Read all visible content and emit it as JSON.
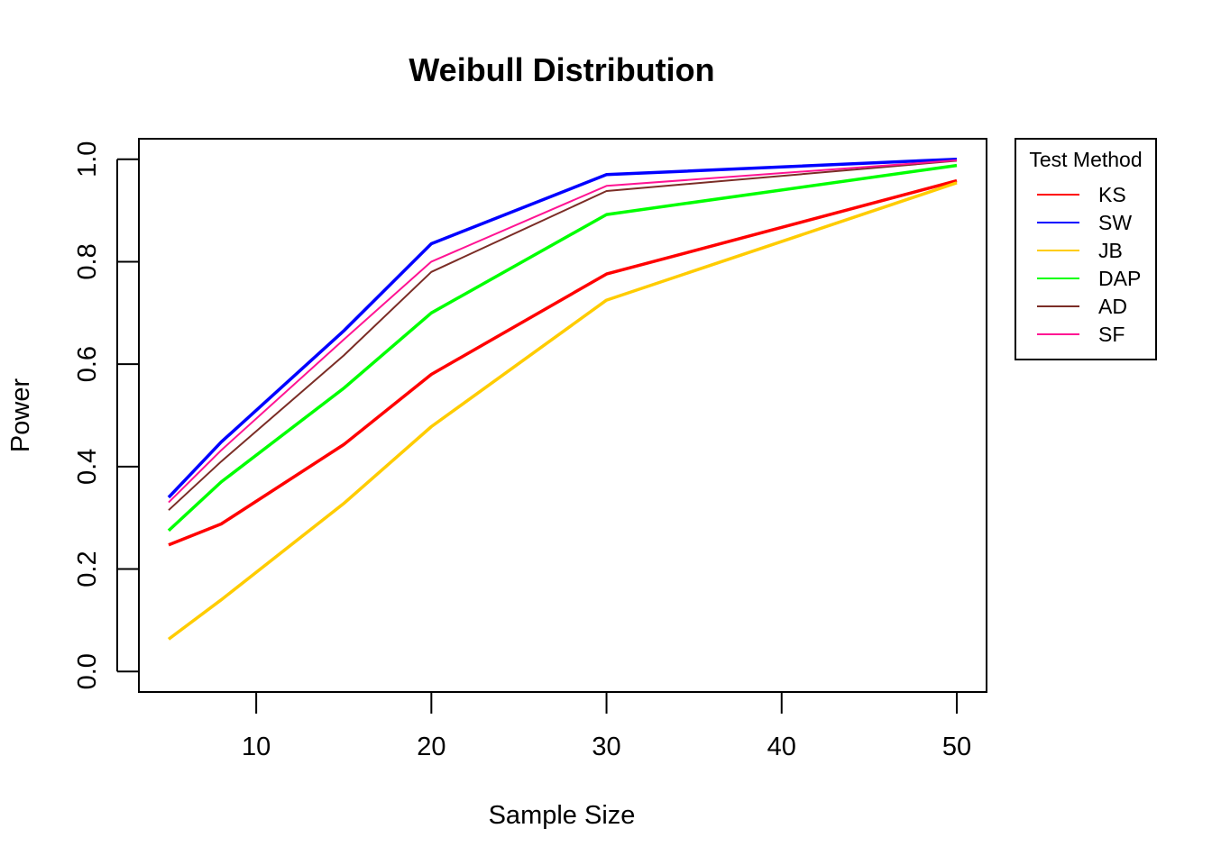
{
  "chart_data": {
    "type": "line",
    "title": "Weibull Distribution",
    "xlabel": "Sample Size",
    "ylabel": "Power",
    "x": [
      5,
      8,
      15,
      20,
      30,
      50
    ],
    "xticks": [
      10,
      20,
      30,
      40,
      50
    ],
    "yticks": [
      "0.0",
      "0.2",
      "0.4",
      "0.6",
      "0.8",
      "1.0"
    ],
    "xlim": [
      3.3,
      51.7
    ],
    "ylim": [
      -0.04,
      1.04
    ],
    "grid": false,
    "legend": {
      "title": "Test Method",
      "placement": "right-outside-top"
    },
    "series": [
      {
        "name": "KS",
        "color": "#FF0000",
        "width": 3.5,
        "values": [
          0.247,
          0.288,
          0.443,
          0.58,
          0.776,
          0.958
        ]
      },
      {
        "name": "SW",
        "color": "#0000FF",
        "width": 3.5,
        "values": [
          0.34,
          0.448,
          0.665,
          0.835,
          0.97,
          1.0
        ]
      },
      {
        "name": "JB",
        "color": "#FFCC00",
        "width": 3.5,
        "values": [
          0.063,
          0.14,
          0.328,
          0.478,
          0.725,
          0.954
        ]
      },
      {
        "name": "DAP",
        "color": "#00FF00",
        "width": 3.5,
        "values": [
          0.275,
          0.37,
          0.553,
          0.7,
          0.892,
          0.988
        ]
      },
      {
        "name": "AD",
        "color": "#7B2D26",
        "width": 2,
        "values": [
          0.315,
          0.41,
          0.617,
          0.78,
          0.938,
          0.997
        ]
      },
      {
        "name": "SF",
        "color": "#FF1493",
        "width": 2,
        "values": [
          0.33,
          0.432,
          0.648,
          0.8,
          0.948,
          0.998
        ]
      }
    ]
  }
}
